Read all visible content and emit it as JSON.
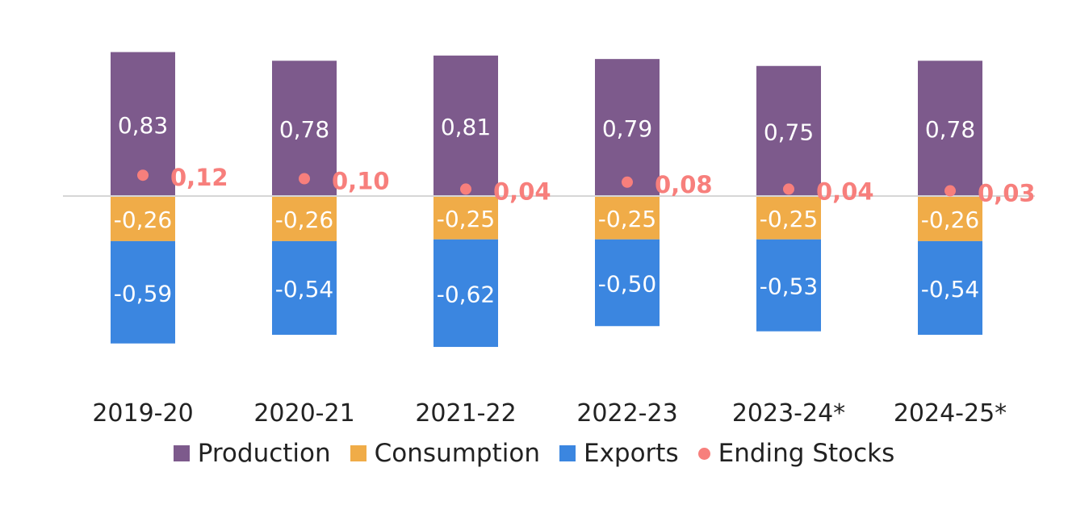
{
  "chart_data": {
    "type": "bar",
    "stacked": true,
    "categories": [
      "2019-20",
      "2020-21",
      "2021-22",
      "2022-23",
      "2023-24*",
      "2024-25*"
    ],
    "series": [
      {
        "name": "Production",
        "color": "#7d5a8c",
        "values": [
          0.83,
          0.78,
          0.81,
          0.79,
          0.75,
          0.78
        ],
        "labels": [
          "0,83",
          "0,78",
          "0,81",
          "0,79",
          "0,75",
          "0,78"
        ]
      },
      {
        "name": "Consumption",
        "color": "#f0ac48",
        "values": [
          -0.26,
          -0.26,
          -0.25,
          -0.25,
          -0.25,
          -0.26
        ],
        "labels": [
          "-0,26",
          "-0,26",
          "-0,25",
          "-0,25",
          "-0,25",
          "-0,26"
        ]
      },
      {
        "name": "Exports",
        "color": "#3b86e0",
        "values": [
          -0.59,
          -0.54,
          -0.62,
          -0.5,
          -0.53,
          -0.54
        ],
        "labels": [
          "-0,59",
          "-0,54",
          "-0,62",
          "-0,50",
          "-0,53",
          "-0,54"
        ]
      },
      {
        "name": "Ending Stocks",
        "type": "scatter",
        "color": "#f77f7c",
        "values": [
          0.12,
          0.1,
          0.04,
          0.08,
          0.04,
          0.03
        ],
        "labels": [
          "0,12",
          "0,10",
          "0,04",
          "0,08",
          "0,04",
          "0,03"
        ]
      }
    ],
    "grid": false,
    "legend": "bottom"
  }
}
